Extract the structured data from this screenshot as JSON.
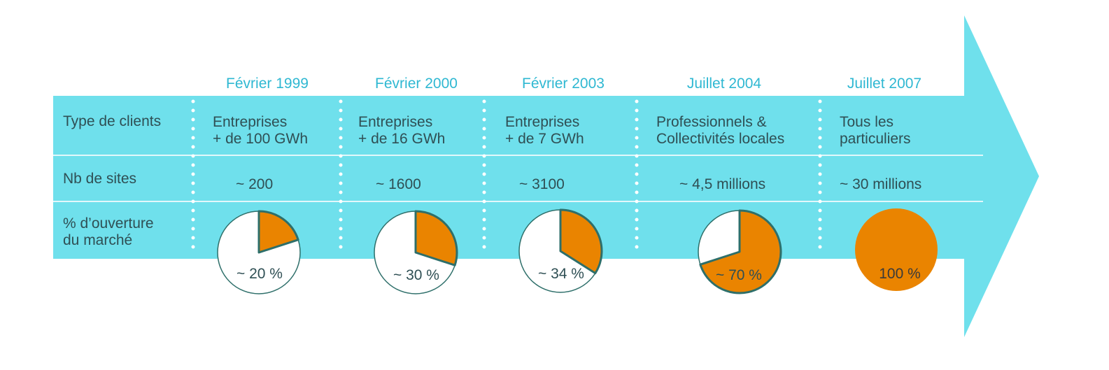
{
  "colors": {
    "band": "#6fe0ec",
    "date": "#2fb8d2",
    "text": "#2f4f54",
    "pie_fill": "#ea8400",
    "pie_stroke": "#2e6f6a",
    "separator": "#ffffff"
  },
  "row_labels": {
    "clients": [
      "Type de clients"
    ],
    "sites": [
      "Nb de sites"
    ],
    "opening": [
      "% d’ouverture",
      "du marché"
    ]
  },
  "columns": [
    {
      "date": "Février 1999",
      "clients": [
        "Entreprises",
        "+ de 100 GWh"
      ],
      "sites": "~ 200",
      "opening_label": "~ 20 %",
      "opening_fraction": 0.2
    },
    {
      "date": "Février 2000",
      "clients": [
        "Entreprises",
        "+ de 16 GWh"
      ],
      "sites": "~ 1600",
      "opening_label": "~ 30 %",
      "opening_fraction": 0.3
    },
    {
      "date": "Février 2003",
      "clients": [
        "Entreprises",
        "+ de 7 GWh"
      ],
      "sites": "~ 3100",
      "opening_label": "~ 34 %",
      "opening_fraction": 0.34
    },
    {
      "date": "Juillet 2004",
      "clients": [
        "Professionnels  &",
        "Collectivités locales"
      ],
      "sites": "~ 4,5 millions",
      "opening_label": "~ 70 %",
      "opening_fraction": 0.7
    },
    {
      "date": "Juillet 2007",
      "clients": [
        "Tous les",
        "particuliers"
      ],
      "sites": "~ 30 millions",
      "opening_label": "100 %",
      "opening_fraction": 1.0
    }
  ]
}
